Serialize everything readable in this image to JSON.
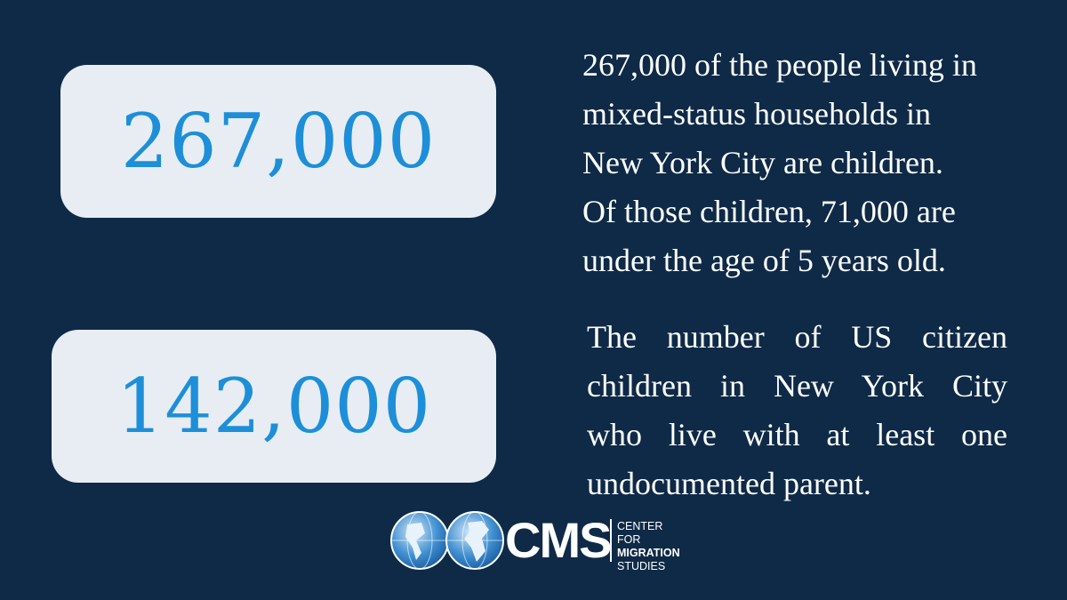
{
  "stats": [
    {
      "number": "267,000",
      "lines": [
        "267,000 of the people living in",
        "mixed-status households in",
        "New York City are children.",
        "Of those children, 71,000 are",
        "under the age of 5 years old."
      ]
    },
    {
      "number": "142,000",
      "lines": [
        "The number of US citizen",
        "children in New York City",
        "who live with at least one",
        "undocumented parent."
      ]
    }
  ],
  "logo": {
    "acronym": "CMS",
    "name": [
      "CENTER FOR",
      "MIGRATION",
      "STUDIES"
    ]
  }
}
